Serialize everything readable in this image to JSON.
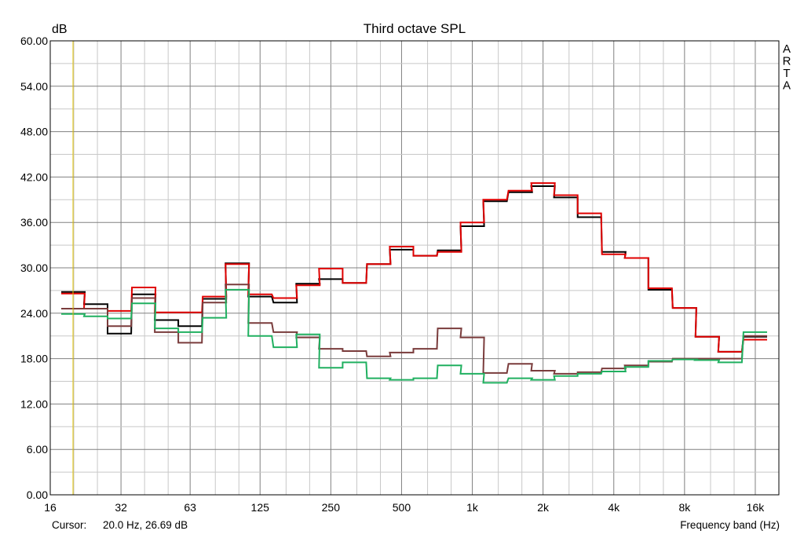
{
  "colors": {
    "background": "#ffffff",
    "grid_major": "#808080",
    "grid_minor": "#c8c8c8",
    "cursor": "#e0c000"
  },
  "chart_data": {
    "type": "line",
    "title": "Third octave SPL",
    "ylabel": "dB",
    "xlabel": "Frequency band (Hz)",
    "brand": "ARTA",
    "x_scale": "log",
    "step_plot": true,
    "grid": true,
    "ylim": [
      0,
      60
    ],
    "y_ticks": [
      "0.00",
      "6.00",
      "12.00",
      "18.00",
      "24.00",
      "30.00",
      "36.00",
      "42.00",
      "48.00",
      "54.00",
      "60.00"
    ],
    "x_ticks": [
      {
        "label": "16",
        "hz": 16
      },
      {
        "label": "32",
        "hz": 32
      },
      {
        "label": "63",
        "hz": 63
      },
      {
        "label": "125",
        "hz": 125
      },
      {
        "label": "250",
        "hz": 250
      },
      {
        "label": "500",
        "hz": 500
      },
      {
        "label": "1k",
        "hz": 1000
      },
      {
        "label": "2k",
        "hz": 2000
      },
      {
        "label": "4k",
        "hz": 4000
      },
      {
        "label": "8k",
        "hz": 8000
      },
      {
        "label": "16k",
        "hz": 16000
      }
    ],
    "bands_hz": [
      20,
      25,
      31.5,
      40,
      50,
      63,
      80,
      100,
      125,
      160,
      200,
      250,
      315,
      400,
      500,
      630,
      800,
      1000,
      1250,
      1600,
      2000,
      2500,
      3150,
      4000,
      5000,
      6300,
      8000,
      10000,
      12500,
      16000
    ],
    "series": [
      {
        "color": "#000000",
        "values": [
          26.8,
          25.2,
          21.3,
          26.5,
          23.1,
          22.3,
          25.9,
          30.6,
          26.2,
          25.4,
          27.9,
          28.5,
          28.0,
          30.5,
          32.4,
          31.6,
          32.3,
          35.5,
          38.8,
          40.0,
          40.8,
          39.3,
          36.7,
          32.1,
          31.3,
          27.1,
          24.7,
          20.9,
          18.9,
          20.9
        ]
      },
      {
        "color": "#e00000",
        "values": [
          26.6,
          24.6,
          24.3,
          27.4,
          24.1,
          24.1,
          26.2,
          30.5,
          26.5,
          26.0,
          27.7,
          29.9,
          28.0,
          30.5,
          32.8,
          31.6,
          32.1,
          36.0,
          39.0,
          40.2,
          41.2,
          39.6,
          37.2,
          31.8,
          31.3,
          27.3,
          24.7,
          20.9,
          18.9,
          20.5
        ]
      },
      {
        "color": "#7a3c3c",
        "values": [
          24.6,
          24.6,
          22.3,
          26.0,
          21.5,
          20.1,
          25.4,
          27.8,
          22.7,
          21.5,
          20.8,
          19.3,
          19.0,
          18.3,
          18.8,
          19.3,
          22.0,
          20.8,
          16.1,
          17.3,
          16.4,
          16.0,
          16.2,
          16.7,
          17.1,
          17.6,
          18.0,
          18.0,
          18.0,
          21.0
        ]
      },
      {
        "color": "#20b060",
        "values": [
          23.9,
          23.6,
          23.3,
          25.3,
          22.0,
          21.5,
          23.4,
          27.1,
          21.0,
          19.5,
          21.2,
          16.8,
          17.5,
          15.4,
          15.2,
          15.4,
          17.1,
          16.0,
          14.8,
          15.4,
          15.2,
          15.7,
          16.0,
          16.3,
          16.9,
          17.7,
          17.9,
          17.8,
          17.5,
          21.5
        ]
      }
    ],
    "cursor": {
      "hz": 20.0,
      "db": 26.69
    },
    "cursor_label": "Cursor:",
    "cursor_readout": "20.0 Hz, 26.69 dB"
  }
}
